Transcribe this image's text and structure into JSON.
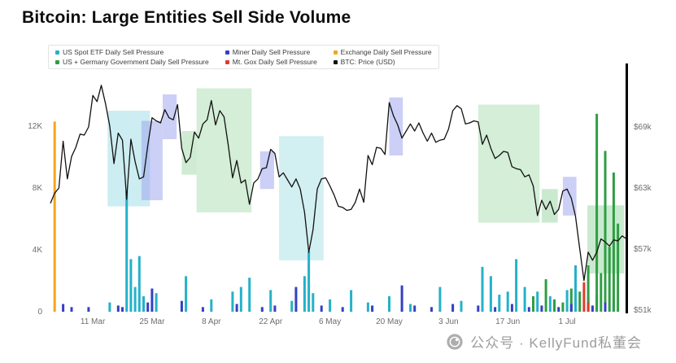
{
  "page": {
    "title": "Bitcoin: Large Entities Sell Side Volume",
    "watermark": "公众号 · KellyFund私董会"
  },
  "legend": {
    "items": [
      {
        "label": "US Spot ETF Daily Sell Pressure",
        "color": "#25b1c9"
      },
      {
        "label": "US + Germany Government Daily Sell Pressure",
        "color": "#2f9e44"
      },
      {
        "label": "Miner Daily Sell Pressure",
        "color": "#3440c4"
      },
      {
        "label": "Mt. Gox Daily Sell Pressure",
        "color": "#e23a2e"
      },
      {
        "label": "Exchange Daily Sell Pressure",
        "color": "#f5a51d"
      },
      {
        "label": "BTC: Price (USD)",
        "color": "#111111"
      }
    ]
  },
  "chart_data": {
    "type": "combo",
    "title": "Bitcoin: Large Entities Sell Side Volume",
    "x": {
      "tick_days": [
        10,
        24,
        38,
        52,
        66,
        80,
        94,
        108,
        122
      ],
      "tick_labels": [
        "11 Mar",
        "25 Mar",
        "8 Apr",
        "22 Apr",
        "6 May",
        "20 May",
        "3 Jun",
        "17 Jun",
        "1 Jul"
      ],
      "day_range": [
        0,
        136
      ]
    },
    "left_axis": {
      "unit": "BTC volume",
      "ticks": [
        {
          "v": 0,
          "label": "0"
        },
        {
          "v": 4000,
          "label": "4K"
        },
        {
          "v": 8000,
          "label": "8K"
        },
        {
          "v": 12000,
          "label": "12K"
        }
      ],
      "range": [
        0,
        16500
      ]
    },
    "right_axis": {
      "unit": "USD",
      "ticks": [
        {
          "v": 51,
          "label": "$51k"
        },
        {
          "v": 57,
          "label": "$57k"
        },
        {
          "v": 63,
          "label": "$63k"
        },
        {
          "v": 69,
          "label": "$69k"
        }
      ],
      "range": [
        50.8,
        75.5
      ]
    },
    "price_color": "#111111",
    "price_usd_k": [
      [
        0,
        61.5
      ],
      [
        1,
        62.5
      ],
      [
        2,
        63.0
      ],
      [
        3,
        67.6
      ],
      [
        4,
        63.9
      ],
      [
        5,
        66.1
      ],
      [
        6,
        67.0
      ],
      [
        7,
        68.3
      ],
      [
        8,
        68.2
      ],
      [
        9,
        69.0
      ],
      [
        10,
        72.1
      ],
      [
        11,
        71.5
      ],
      [
        12,
        73.1
      ],
      [
        13,
        71.3
      ],
      [
        14,
        69.1
      ],
      [
        15,
        65.4
      ],
      [
        16,
        68.4
      ],
      [
        17,
        67.7
      ],
      [
        18,
        61.9
      ],
      [
        19,
        67.8
      ],
      [
        20,
        65.6
      ],
      [
        21,
        63.9
      ],
      [
        22,
        64.1
      ],
      [
        23,
        67.2
      ],
      [
        24,
        69.9
      ],
      [
        25,
        69.6
      ],
      [
        26,
        69.4
      ],
      [
        27,
        70.7
      ],
      [
        28,
        69.9
      ],
      [
        29,
        69.7
      ],
      [
        30,
        71.2
      ],
      [
        31,
        66.9
      ],
      [
        32,
        65.5
      ],
      [
        33,
        66.0
      ],
      [
        34,
        68.5
      ],
      [
        35,
        67.9
      ],
      [
        36,
        69.3
      ],
      [
        37,
        69.7
      ],
      [
        38,
        71.6
      ],
      [
        39,
        69.2
      ],
      [
        40,
        70.6
      ],
      [
        41,
        70.0
      ],
      [
        42,
        67.2
      ],
      [
        43,
        64.0
      ],
      [
        44,
        65.7
      ],
      [
        45,
        63.5
      ],
      [
        46,
        63.8
      ],
      [
        47,
        61.4
      ],
      [
        48,
        63.5
      ],
      [
        49,
        63.9
      ],
      [
        50,
        64.9
      ],
      [
        51,
        65.0
      ],
      [
        52,
        66.8
      ],
      [
        53,
        66.4
      ],
      [
        54,
        64.1
      ],
      [
        55,
        64.5
      ],
      [
        56,
        63.8
      ],
      [
        57,
        63.1
      ],
      [
        58,
        63.9
      ],
      [
        59,
        62.9
      ],
      [
        60,
        60.6
      ],
      [
        61,
        56.7
      ],
      [
        62,
        58.9
      ],
      [
        63,
        62.9
      ],
      [
        64,
        63.9
      ],
      [
        65,
        64.0
      ],
      [
        66,
        63.2
      ],
      [
        67,
        62.3
      ],
      [
        68,
        61.2
      ],
      [
        69,
        61.1
      ],
      [
        70,
        60.8
      ],
      [
        71,
        60.9
      ],
      [
        72,
        61.6
      ],
      [
        73,
        62.9
      ],
      [
        74,
        61.6
      ],
      [
        75,
        66.2
      ],
      [
        76,
        65.3
      ],
      [
        77,
        67.0
      ],
      [
        78,
        66.9
      ],
      [
        79,
        66.3
      ],
      [
        80,
        71.4
      ],
      [
        81,
        70.1
      ],
      [
        82,
        69.2
      ],
      [
        83,
        67.9
      ],
      [
        84,
        68.6
      ],
      [
        85,
        69.3
      ],
      [
        86,
        68.6
      ],
      [
        87,
        69.4
      ],
      [
        88,
        68.4
      ],
      [
        89,
        67.6
      ],
      [
        90,
        68.4
      ],
      [
        91,
        67.5
      ],
      [
        92,
        67.7
      ],
      [
        93,
        67.8
      ],
      [
        94,
        68.8
      ],
      [
        95,
        70.6
      ],
      [
        96,
        71.1
      ],
      [
        97,
        70.8
      ],
      [
        98,
        69.3
      ],
      [
        99,
        69.4
      ],
      [
        100,
        69.6
      ],
      [
        101,
        69.5
      ],
      [
        102,
        67.3
      ],
      [
        103,
        68.2
      ],
      [
        104,
        66.9
      ],
      [
        105,
        65.9
      ],
      [
        106,
        66.2
      ],
      [
        107,
        66.6
      ],
      [
        108,
        66.5
      ],
      [
        109,
        65.1
      ],
      [
        110,
        64.9
      ],
      [
        111,
        64.8
      ],
      [
        112,
        64.1
      ],
      [
        113,
        64.3
      ],
      [
        114,
        63.2
      ],
      [
        115,
        60.3
      ],
      [
        116,
        61.8
      ],
      [
        117,
        60.9
      ],
      [
        118,
        61.7
      ],
      [
        119,
        60.4
      ],
      [
        120,
        60.9
      ],
      [
        121,
        62.7
      ],
      [
        122,
        62.9
      ],
      [
        123,
        62.0
      ],
      [
        124,
        60.2
      ],
      [
        125,
        57.0
      ],
      [
        126,
        53.9
      ],
      [
        127,
        56.7
      ],
      [
        128,
        55.9
      ],
      [
        129,
        56.7
      ],
      [
        130,
        58.0
      ],
      [
        131,
        57.7
      ],
      [
        132,
        57.3
      ],
      [
        133,
        57.9
      ],
      [
        134,
        57.8
      ],
      [
        135,
        58.3
      ],
      [
        136,
        58.0
      ]
    ],
    "bar_unit": "K",
    "bar_series": [
      {
        "name": "US Spot ETF Daily Sell Pressure",
        "key": "etf",
        "color": "#25b1c9",
        "bars": [
          [
            14,
            0.6
          ],
          [
            18,
            7.8
          ],
          [
            19,
            3.4
          ],
          [
            20,
            1.6
          ],
          [
            21,
            3.6
          ],
          [
            22,
            1.0
          ],
          [
            25,
            1.2
          ],
          [
            32,
            2.3
          ],
          [
            38,
            0.8
          ],
          [
            43,
            1.3
          ],
          [
            45,
            1.6
          ],
          [
            47,
            2.2
          ],
          [
            52,
            1.4
          ],
          [
            57,
            0.7
          ],
          [
            60,
            2.3
          ],
          [
            61,
            3.9
          ],
          [
            62,
            1.2
          ],
          [
            66,
            0.8
          ],
          [
            71,
            1.4
          ],
          [
            75,
            0.6
          ],
          [
            80,
            1.0
          ],
          [
            85,
            0.5
          ],
          [
            92,
            1.6
          ],
          [
            97,
            0.7
          ],
          [
            102,
            2.9
          ],
          [
            104,
            2.3
          ],
          [
            106,
            1.1
          ],
          [
            108,
            1.3
          ],
          [
            110,
            3.4
          ],
          [
            112,
            1.6
          ],
          [
            115,
            1.3
          ],
          [
            118,
            1.0
          ],
          [
            122,
            1.4
          ],
          [
            124,
            3.0
          ],
          [
            127,
            0.9
          ],
          [
            129,
            1.1
          ],
          [
            133,
            0.8
          ]
        ]
      },
      {
        "name": "US + Germany Government Daily Sell Pressure",
        "key": "gov",
        "color": "#2f9e44",
        "bars": [
          [
            114,
            1.0
          ],
          [
            117,
            2.1
          ],
          [
            119,
            0.8
          ],
          [
            121,
            0.6
          ],
          [
            123,
            1.5
          ],
          [
            125,
            1.3
          ],
          [
            127,
            3.0
          ],
          [
            129,
            12.8
          ],
          [
            130,
            2.5
          ],
          [
            131,
            10.4
          ],
          [
            132,
            4.2
          ],
          [
            133,
            9.0
          ],
          [
            134,
            5.7
          ]
        ]
      },
      {
        "name": "Miner Daily Sell Pressure",
        "key": "miner",
        "color": "#3440c4",
        "bars": [
          [
            3,
            0.5
          ],
          [
            5,
            0.3
          ],
          [
            9,
            0.3
          ],
          [
            16,
            0.4
          ],
          [
            17,
            0.3
          ],
          [
            23,
            0.6
          ],
          [
            24,
            1.5
          ],
          [
            31,
            0.7
          ],
          [
            36,
            0.3
          ],
          [
            44,
            0.5
          ],
          [
            50,
            0.3
          ],
          [
            53,
            0.4
          ],
          [
            58,
            1.6
          ],
          [
            64,
            0.4
          ],
          [
            69,
            0.3
          ],
          [
            76,
            0.4
          ],
          [
            83,
            1.7
          ],
          [
            86,
            0.4
          ],
          [
            90,
            0.3
          ],
          [
            95,
            0.5
          ],
          [
            101,
            0.4
          ],
          [
            105,
            0.3
          ],
          [
            109,
            0.5
          ],
          [
            113,
            0.3
          ],
          [
            116,
            0.4
          ],
          [
            120,
            0.3
          ],
          [
            123,
            0.5
          ],
          [
            128,
            0.4
          ],
          [
            131,
            0.6
          ]
        ]
      },
      {
        "name": "Mt. Gox Daily Sell Pressure",
        "key": "gox",
        "color": "#e23a2e",
        "bars": [
          [
            126,
            1.9
          ],
          [
            127,
            0.6
          ]
        ]
      },
      {
        "name": "Exchange Daily Sell Pressure",
        "key": "exchange",
        "color": "#f5a51d",
        "bars": [
          [
            1,
            12.3
          ]
        ]
      }
    ],
    "regions": [
      {
        "color": "#8fd8df",
        "opacity": 0.45,
        "d0": 13.5,
        "d1": 23.5,
        "p0": 61.2,
        "p1": 70.6
      },
      {
        "color": "#9aa0ee",
        "opacity": 0.5,
        "d0": 21.5,
        "d1": 26.5,
        "p0": 61.8,
        "p1": 69.6
      },
      {
        "color": "#9aa0ee",
        "opacity": 0.5,
        "d0": 26.5,
        "d1": 29.8,
        "p0": 67.8,
        "p1": 72.2
      },
      {
        "color": "#9fd9a8",
        "opacity": 0.5,
        "d0": 31.0,
        "d1": 34.5,
        "p0": 64.3,
        "p1": 68.6
      },
      {
        "color": "#9fd9a8",
        "opacity": 0.45,
        "d0": 34.5,
        "d1": 47.5,
        "p0": 60.6,
        "p1": 72.8
      },
      {
        "color": "#9aa0ee",
        "opacity": 0.5,
        "d0": 49.5,
        "d1": 52.8,
        "p0": 62.9,
        "p1": 66.6
      },
      {
        "color": "#8fd8df",
        "opacity": 0.4,
        "d0": 54.0,
        "d1": 64.5,
        "p0": 55.9,
        "p1": 68.1
      },
      {
        "color": "#9aa0ee",
        "opacity": 0.5,
        "d0": 80.0,
        "d1": 83.2,
        "p0": 66.2,
        "p1": 71.9
      },
      {
        "color": "#9fd9a8",
        "opacity": 0.45,
        "d0": 101.0,
        "d1": 115.5,
        "p0": 59.6,
        "p1": 71.2
      },
      {
        "color": "#9fd9a8",
        "opacity": 0.55,
        "d0": 116.0,
        "d1": 119.8,
        "p0": 59.6,
        "p1": 62.9
      },
      {
        "color": "#9aa0ee",
        "opacity": 0.5,
        "d0": 121.0,
        "d1": 124.2,
        "p0": 60.3,
        "p1": 64.1
      },
      {
        "color": "#9fd9a8",
        "opacity": 0.55,
        "d0": 126.8,
        "d1": 135.5,
        "p0": 54.6,
        "p1": 61.3
      }
    ]
  }
}
